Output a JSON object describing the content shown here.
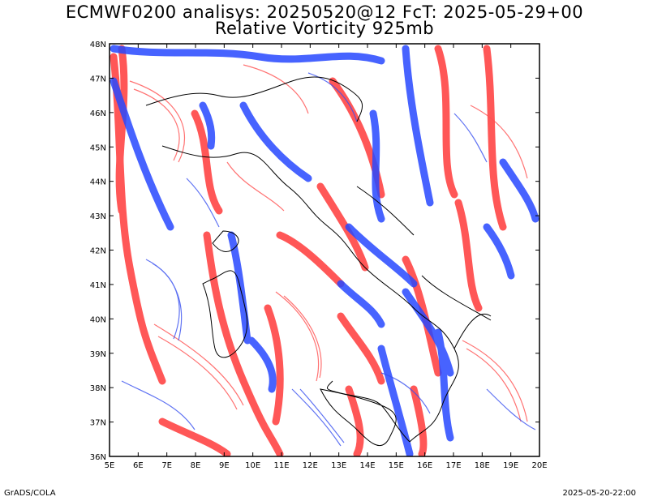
{
  "header": {
    "title_line1": "ECMWF0200 analisys: 20250520@12 FcT: 2025-05-29+00",
    "title_line2": "Relative Vorticity 925mb"
  },
  "axes": {
    "lat_labels": [
      "36N",
      "37N",
      "38N",
      "39N",
      "40N",
      "41N",
      "42N",
      "43N",
      "44N",
      "45N",
      "46N",
      "47N",
      "48N"
    ],
    "lon_labels": [
      "5E",
      "6E",
      "7E",
      "8E",
      "9E",
      "10E",
      "11E",
      "12E",
      "13E",
      "14E",
      "15E",
      "16E",
      "17E",
      "18E",
      "19E",
      "20E"
    ],
    "lat_range": [
      36,
      48
    ],
    "lon_range": [
      5,
      20
    ]
  },
  "colors": {
    "positive_vorticity": "#ff3030",
    "negative_vorticity": "#2040ff",
    "coastline": "#000000"
  },
  "footer": {
    "credit": "GrADS/COLA",
    "timestamp": "2025-05-20-22:00"
  }
}
